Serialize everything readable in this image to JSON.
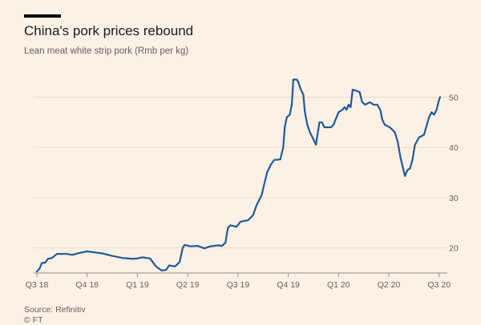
{
  "header": {
    "title": "China's pork prices rebound",
    "subtitle": "Lean meat white strip pork (Rmb per kg)"
  },
  "footer": {
    "source": "Source: Refinitiv",
    "credit": "© FT"
  },
  "colors": {
    "background": "#fdf1e6",
    "series": "#1f5a96"
  },
  "chart_data": {
    "type": "line",
    "title": "China's pork prices rebound",
    "subtitle": "Lean meat white strip pork (Rmb per kg)",
    "xlabel": "",
    "ylabel": "",
    "x_tick_labels": [
      "Q3 18",
      "Q4 18",
      "Q1 19",
      "Q2 19",
      "Q3 19",
      "Q4 19",
      "Q1 20",
      "Q2 20",
      "Q3 20"
    ],
    "y_ticks": [
      20,
      30,
      40,
      50
    ],
    "ylim": [
      15,
      55
    ],
    "grid": true,
    "legend": "none",
    "series": [
      {
        "values": [
          [
            0.0,
            15.3
          ],
          [
            0.05,
            15.8
          ],
          [
            0.1,
            17.0
          ],
          [
            0.16,
            17.0
          ],
          [
            0.22,
            17.8
          ],
          [
            0.3,
            18.0
          ],
          [
            0.4,
            18.8
          ],
          [
            0.6,
            18.8
          ],
          [
            0.7,
            18.6
          ],
          [
            0.85,
            19.0
          ],
          [
            1.0,
            19.3
          ],
          [
            1.15,
            19.1
          ],
          [
            1.3,
            18.9
          ],
          [
            1.5,
            18.4
          ],
          [
            1.7,
            18.0
          ],
          [
            1.9,
            17.8
          ],
          [
            2.0,
            17.9
          ],
          [
            2.1,
            18.1
          ],
          [
            2.25,
            17.9
          ],
          [
            2.37,
            16.3
          ],
          [
            2.48,
            15.5
          ],
          [
            2.57,
            15.6
          ],
          [
            2.63,
            16.5
          ],
          [
            2.75,
            16.3
          ],
          [
            2.84,
            17.2
          ],
          [
            2.9,
            20.0
          ],
          [
            2.94,
            20.6
          ],
          [
            3.05,
            20.3
          ],
          [
            3.2,
            20.4
          ],
          [
            3.33,
            19.9
          ],
          [
            3.45,
            20.3
          ],
          [
            3.6,
            20.5
          ],
          [
            3.68,
            20.4
          ],
          [
            3.75,
            21.0
          ],
          [
            3.8,
            24.0
          ],
          [
            3.85,
            24.5
          ],
          [
            3.97,
            24.2
          ],
          [
            4.05,
            25.2
          ],
          [
            4.2,
            25.5
          ],
          [
            4.3,
            26.5
          ],
          [
            4.37,
            28.5
          ],
          [
            4.47,
            30.5
          ],
          [
            4.53,
            33.0
          ],
          [
            4.58,
            35.0
          ],
          [
            4.65,
            36.5
          ],
          [
            4.72,
            37.5
          ],
          [
            4.84,
            37.6
          ],
          [
            4.9,
            40.0
          ],
          [
            4.93,
            44.0
          ],
          [
            4.97,
            46.0
          ],
          [
            5.03,
            46.5
          ],
          [
            5.07,
            48.5
          ],
          [
            5.1,
            53.5
          ],
          [
            5.17,
            53.5
          ],
          [
            5.2,
            53.0
          ],
          [
            5.25,
            51.5
          ],
          [
            5.3,
            50.5
          ],
          [
            5.33,
            47.0
          ],
          [
            5.38,
            44.5
          ],
          [
            5.43,
            43.0
          ],
          [
            5.53,
            41.0
          ],
          [
            5.55,
            40.5
          ],
          [
            5.58,
            42.5
          ],
          [
            5.62,
            45.0
          ],
          [
            5.67,
            45.0
          ],
          [
            5.72,
            44.0
          ],
          [
            5.85,
            44.0
          ],
          [
            5.9,
            44.5
          ],
          [
            6.0,
            47.0
          ],
          [
            6.08,
            47.5
          ],
          [
            6.12,
            48.0
          ],
          [
            6.16,
            47.5
          ],
          [
            6.2,
            48.5
          ],
          [
            6.24,
            48.0
          ],
          [
            6.28,
            51.5
          ],
          [
            6.35,
            51.3
          ],
          [
            6.42,
            51.0
          ],
          [
            6.47,
            49.0
          ],
          [
            6.53,
            48.5
          ],
          [
            6.62,
            49.0
          ],
          [
            6.7,
            48.5
          ],
          [
            6.77,
            48.5
          ],
          [
            6.83,
            47.5
          ],
          [
            6.87,
            45.5
          ],
          [
            6.92,
            44.5
          ],
          [
            7.02,
            44.0
          ],
          [
            7.12,
            43.0
          ],
          [
            7.18,
            41.0
          ],
          [
            7.23,
            38.0
          ],
          [
            7.28,
            36.0
          ],
          [
            7.32,
            34.3
          ],
          [
            7.37,
            35.5
          ],
          [
            7.42,
            35.8
          ],
          [
            7.47,
            37.5
          ],
          [
            7.52,
            40.5
          ],
          [
            7.6,
            42.0
          ],
          [
            7.7,
            42.5
          ],
          [
            7.8,
            46.0
          ],
          [
            7.85,
            47.0
          ],
          [
            7.9,
            46.5
          ],
          [
            7.95,
            47.5
          ],
          [
            8.0,
            49.5
          ],
          [
            8.02,
            50.0
          ]
        ]
      }
    ]
  }
}
